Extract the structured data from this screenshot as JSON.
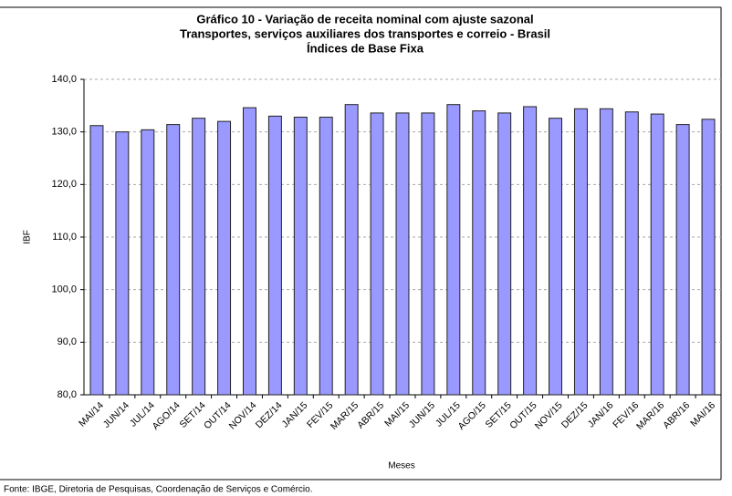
{
  "chart_data": {
    "type": "bar",
    "title": [
      "Gráfico 10 - Variação de receita nominal com ajuste sazonal",
      "Transportes, serviços auxiliares dos transportes e correio - Brasil",
      "Índices de Base Fixa"
    ],
    "x_label": "Meses",
    "y_label": "IBF",
    "source": "Fonte: IBGE, Diretoria de Pesquisas, Coordenação de Serviços e Comércio.",
    "categories": [
      "MAI/14",
      "JUN/14",
      "JUL/14",
      "AGO/14",
      "SET/14",
      "OUT/14",
      "NOV/14",
      "DEZ/14",
      "JAN/15",
      "FEV/15",
      "MAR/15",
      "ABR/15",
      "MAI/15",
      "JUN/15",
      "JUL/15",
      "AGO/15",
      "SET/15",
      "OUT/15",
      "NOV/15",
      "DEZ/15",
      "JAN/16",
      "FEV/16",
      "MAR/16",
      "ABR/16",
      "MAI/16"
    ],
    "values": [
      131.2,
      130.0,
      130.4,
      131.4,
      132.6,
      132.0,
      134.6,
      133.0,
      132.8,
      132.8,
      135.2,
      133.6,
      133.6,
      133.6,
      135.2,
      134.0,
      133.6,
      134.8,
      132.6,
      134.4,
      134.4,
      133.8,
      133.4,
      131.4,
      132.4
    ],
    "color": "#9999ff",
    "ylim": [
      80,
      140
    ],
    "yticks": [
      {
        "value": 80,
        "label": "80,0"
      },
      {
        "value": 90,
        "label": "90,0"
      },
      {
        "value": 100,
        "label": "100,0"
      },
      {
        "value": 110,
        "label": "110,0"
      },
      {
        "value": 120,
        "label": "120,0"
      },
      {
        "value": 130,
        "label": "130,0"
      },
      {
        "value": 140,
        "label": "140,0"
      }
    ],
    "grid": true
  }
}
